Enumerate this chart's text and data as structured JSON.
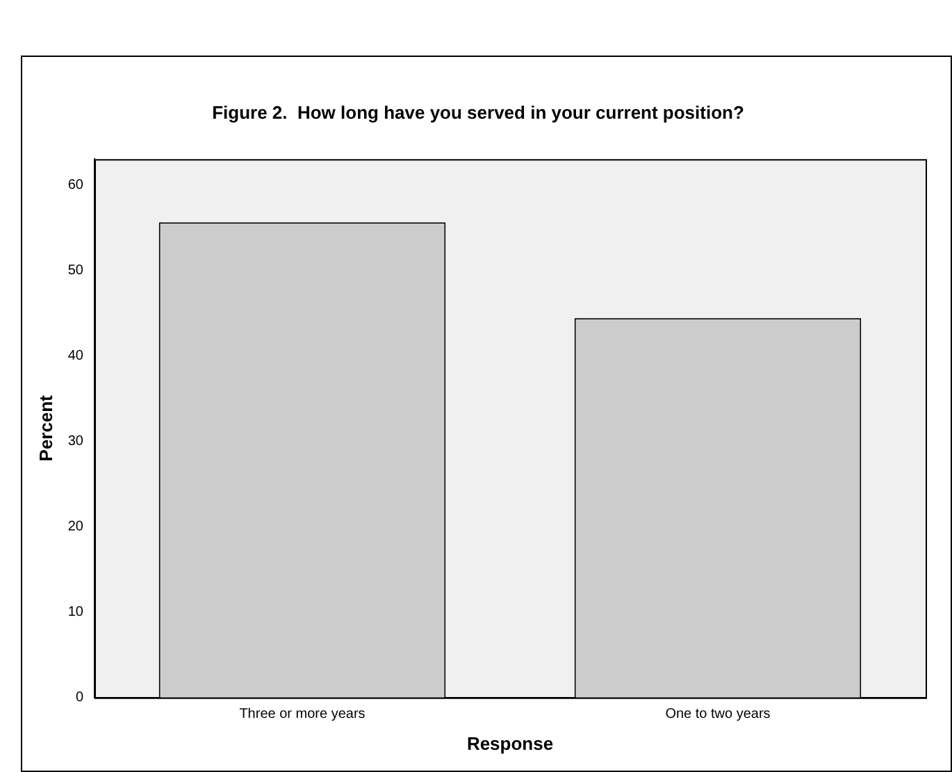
{
  "chart_data": {
    "type": "bar",
    "title": "Figure 2.  How long have you served in your current position?",
    "xlabel": "Response",
    "ylabel": "Percent",
    "categories": [
      "Three or more years",
      "One to two years"
    ],
    "values": [
      55.6,
      44.4
    ],
    "color": "#cccccc",
    "ylim": [
      0,
      63
    ],
    "yticks": [
      0,
      10,
      20,
      30,
      40,
      50,
      60
    ],
    "grid": false,
    "legend": false
  }
}
